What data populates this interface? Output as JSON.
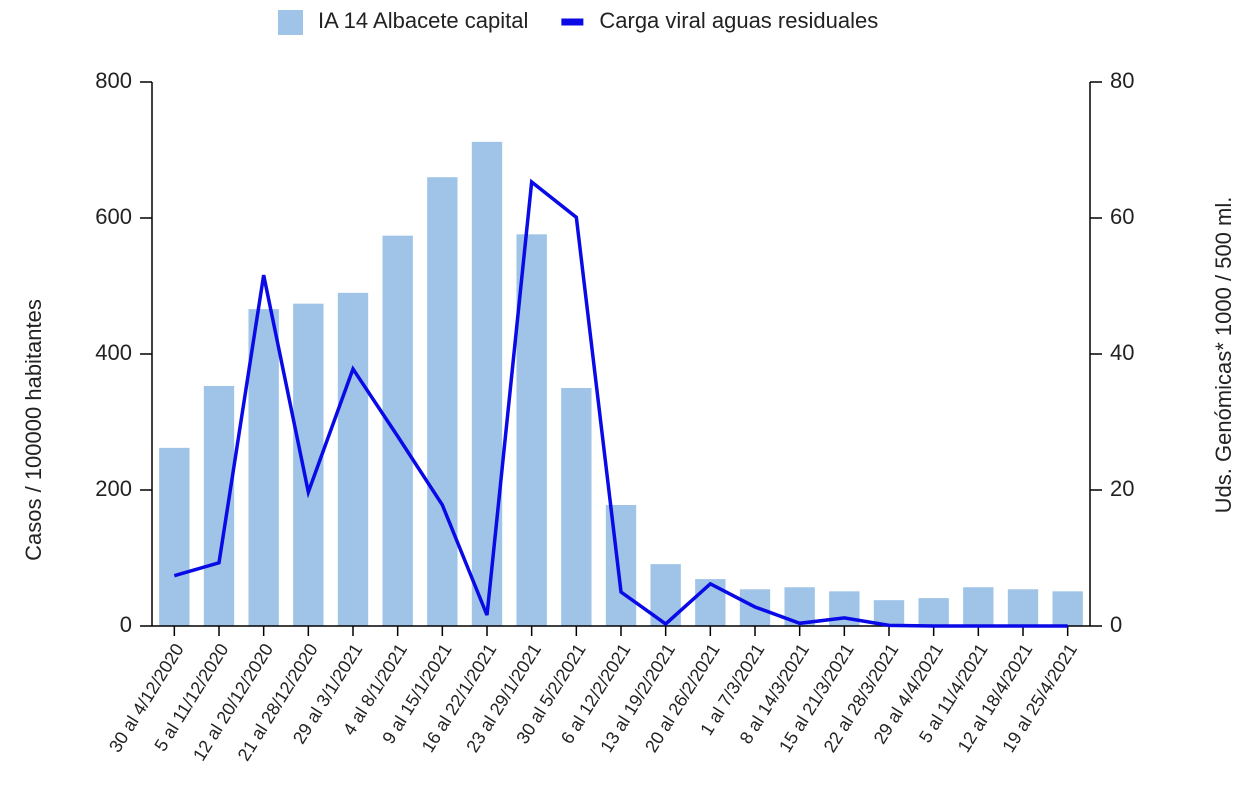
{
  "chart_data": {
    "type": "bar_line",
    "categories": [
      "30 al 4/12/2020",
      "5 al 11/12/2020",
      "12 al 20/12/2020",
      "21 al 28/12/2020",
      "29 al 3/1/2021",
      "4 al 8/1/2021",
      "9 al 15/1/2021",
      "16 al 22/1/2021",
      "23 al 29/1/2021",
      "30 al 5/2/2021",
      "6 al 12/2/2021",
      "13 al 19/2/2021",
      "20 al 26/2/2021",
      "1 al 7/3/2021",
      "8 al 14/3/2021",
      "15 al 21/3/2021",
      "22 al 28/3/2021",
      "29 al 4/4/2021",
      "5 al 11/4/2021",
      "12 al 18/4/2021",
      "19 al 25/4/2021"
    ],
    "series": [
      {
        "name": "IA 14 Albacete capital",
        "color": "#a0c4e8",
        "type": "bar",
        "values": [
          262,
          353,
          466,
          474,
          490,
          574,
          660,
          712,
          576,
          350,
          178,
          91,
          69,
          54,
          57,
          51,
          38,
          41,
          57,
          54,
          51
        ]
      },
      {
        "name": "Carga viral aguas residuales",
        "color": "#0a0ae6",
        "type": "line",
        "axis": "y2",
        "values": [
          7.4,
          9.3,
          51.6,
          19.7,
          37.8,
          27.9,
          17.8,
          1.6,
          65.3,
          60.1,
          5,
          0.3,
          6.2,
          2.8,
          0.4,
          1.2,
          0.1,
          0,
          0,
          0,
          0
        ]
      }
    ],
    "ylabel": "Casos / 100000 habitantes",
    "y2label": "Uds. Genómicas* 1000 / 500 ml.",
    "ylim": [
      0,
      800
    ],
    "yticks": [
      0,
      200,
      400,
      600,
      800
    ],
    "y2lim": [
      0,
      80
    ],
    "y2ticks": [
      0,
      20,
      40,
      60,
      80
    ],
    "legend": "top"
  }
}
